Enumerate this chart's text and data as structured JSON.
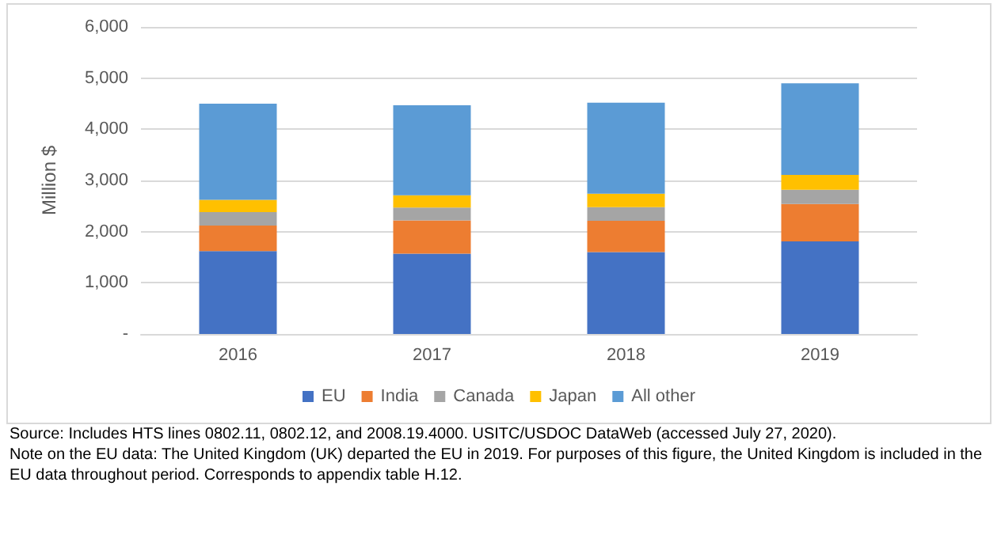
{
  "chart_data": {
    "type": "bar",
    "stacked": true,
    "ylabel": "Million $",
    "categories": [
      "2016",
      "2017",
      "2018",
      "2019"
    ],
    "series": [
      {
        "name": "EU",
        "color": "#4472c4",
        "values": [
          1620,
          1570,
          1600,
          1810
        ]
      },
      {
        "name": "India",
        "color": "#ed7d31",
        "values": [
          500,
          650,
          610,
          730
        ]
      },
      {
        "name": "Canada",
        "color": "#a5a5a5",
        "values": [
          260,
          250,
          270,
          280
        ]
      },
      {
        "name": "Japan",
        "color": "#ffc000",
        "values": [
          240,
          240,
          260,
          290
        ]
      },
      {
        "name": "All other",
        "color": "#5b9bd5",
        "values": [
          1880,
          1760,
          1780,
          1790
        ]
      }
    ],
    "ylim": [
      0,
      6000
    ],
    "yticks": [
      {
        "value": 0,
        "label": "-"
      },
      {
        "value": 1000,
        "label": "1,000"
      },
      {
        "value": 2000,
        "label": "2,000"
      },
      {
        "value": 3000,
        "label": "3,000"
      },
      {
        "value": 4000,
        "label": "4,000"
      },
      {
        "value": 5000,
        "label": "5,000"
      },
      {
        "value": 6000,
        "label": "6,000"
      }
    ],
    "grid": "y",
    "legend": "bottom",
    "annotations": [
      "Source: Includes HTS lines 0802.11, 0802.12, and 2008.19.4000. USITC/USDOC DataWeb (accessed July 27, 2020).",
      "Note on the EU data: The United Kingdom (UK) departed the EU in 2019. For purposes of this figure, the United Kingdom is included in the EU data throughout period. Corresponds to appendix table H.12."
    ]
  }
}
